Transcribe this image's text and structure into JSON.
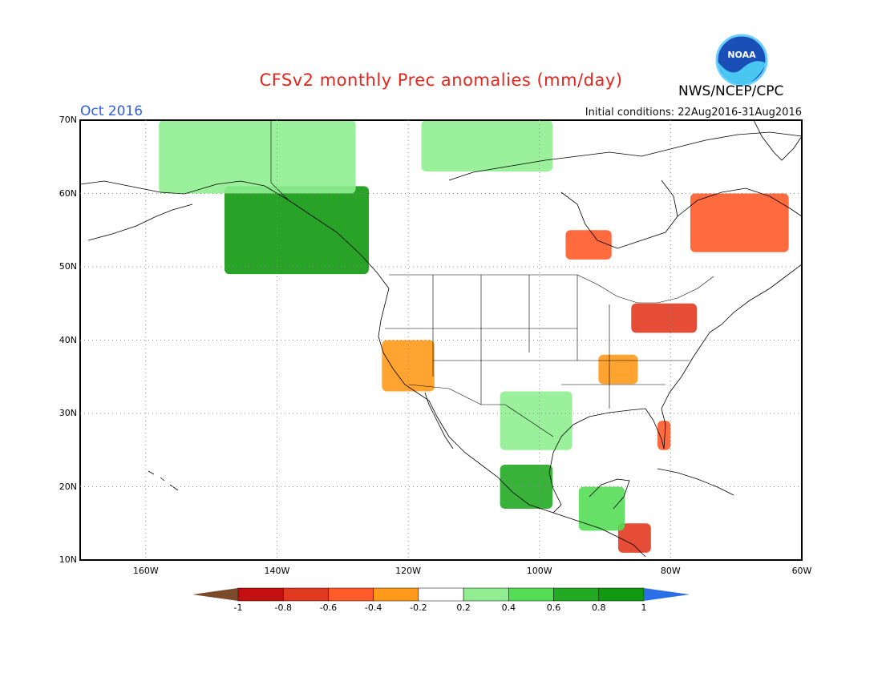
{
  "title": "CFSv2 monthly Prec anomalies (mm/day)",
  "agency": "NWS/NCEP/CPC",
  "logo_text": "NOAA",
  "valid_month": "Oct 2016",
  "initial_conditions": "Initial conditions: 22Aug2016-31Aug2016",
  "lat_labels": [
    "70N",
    "60N",
    "50N",
    "40N",
    "30N",
    "20N",
    "10N"
  ],
  "lon_labels": [
    "160W",
    "140W",
    "120W",
    "100W",
    "80W",
    "60W"
  ],
  "colorbar": {
    "labels": [
      "-1",
      "-0.8",
      "-0.6",
      "-0.4",
      "-0.2",
      "0.2",
      "0.4",
      "0.6",
      "0.8",
      "1"
    ],
    "colors": [
      "#7a4a2a",
      "#c41010",
      "#e23a20",
      "#ff5a2a",
      "#ff9a1a",
      "#ffffff",
      "#90ee90",
      "#55dd55",
      "#22aa22",
      "#119911",
      "#2a6ee8"
    ]
  },
  "chart_data": {
    "type": "heatmap",
    "extent": {
      "lon": [
        -170,
        -60
      ],
      "lat": [
        10,
        70
      ]
    },
    "anomaly_regions": [
      {
        "name": "Gulf of Alaska coast",
        "lon": [
          -148,
          -126
        ],
        "lat": [
          49,
          61
        ],
        "value": 1.0
      },
      {
        "name": "Alaska / Yukon interior",
        "lon": [
          -158,
          -128
        ],
        "lat": [
          60,
          70
        ],
        "value": 0.3
      },
      {
        "name": "Canadian Arctic",
        "lon": [
          -118,
          -98
        ],
        "lat": [
          63,
          70
        ],
        "value": 0.3
      },
      {
        "name": "Labrador / Quebec",
        "lon": [
          -77,
          -62
        ],
        "lat": [
          52,
          60
        ],
        "value": -0.4
      },
      {
        "name": "Hudson Bay south",
        "lon": [
          -96,
          -89
        ],
        "lat": [
          51,
          55
        ],
        "value": -0.4
      },
      {
        "name": "Great Lakes",
        "lon": [
          -86,
          -76
        ],
        "lat": [
          41,
          45
        ],
        "value": -0.6
      },
      {
        "name": "California",
        "lon": [
          -124,
          -116
        ],
        "lat": [
          33,
          40
        ],
        "value": -0.3
      },
      {
        "name": "Mexico Pacific coast",
        "lon": [
          -106,
          -98
        ],
        "lat": [
          17,
          23
        ],
        "value": 0.8
      },
      {
        "name": "Texas / N Mexico",
        "lon": [
          -106,
          -95
        ],
        "lat": [
          25,
          33
        ],
        "value": 0.3
      },
      {
        "name": "Florida",
        "lon": [
          -82,
          -80
        ],
        "lat": [
          25,
          29
        ],
        "value": -0.5
      },
      {
        "name": "Central America",
        "lon": [
          -88,
          -83
        ],
        "lat": [
          11,
          15
        ],
        "value": -0.7
      },
      {
        "name": "Yucatan / Guatemala",
        "lon": [
          -94,
          -87
        ],
        "lat": [
          14,
          20
        ],
        "value": 0.6
      },
      {
        "name": "Southeast US",
        "lon": [
          -91,
          -85
        ],
        "lat": [
          34,
          38
        ],
        "value": -0.3
      }
    ]
  }
}
